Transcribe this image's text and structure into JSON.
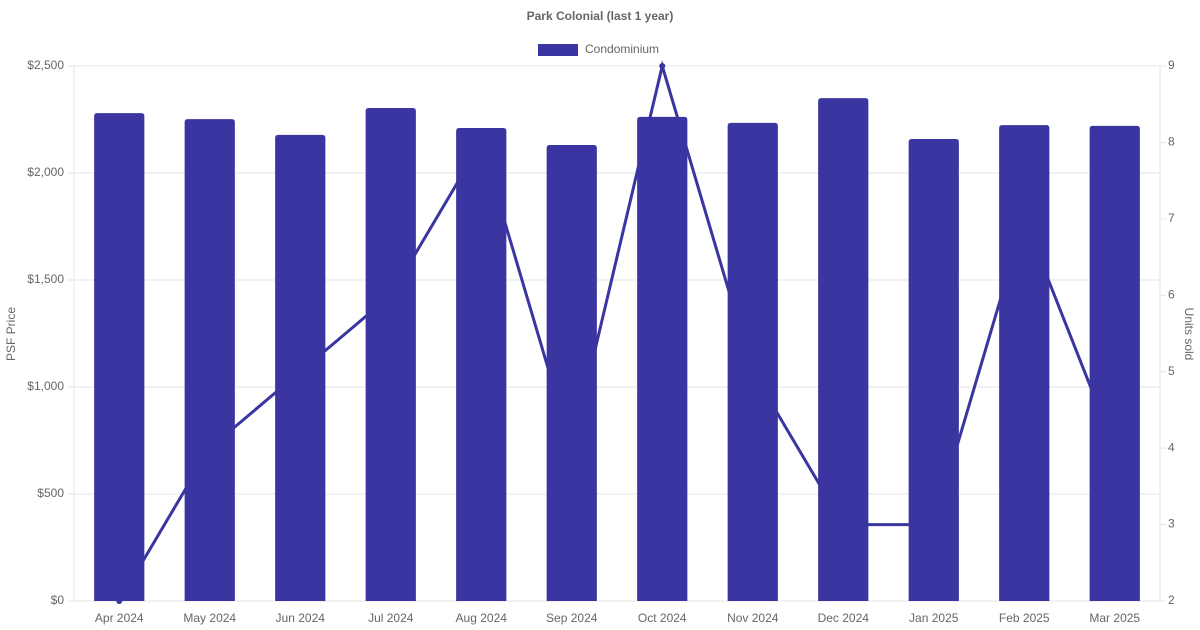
{
  "chart_data": {
    "type": "bar",
    "title": "Park Colonial (last 1 year)",
    "categories": [
      "Apr 2024",
      "May 2024",
      "Jun 2024",
      "Jul 2024",
      "Aug 2024",
      "Sep 2024",
      "Oct 2024",
      "Nov 2024",
      "Dec 2024",
      "Jan 2025",
      "Feb 2025",
      "Mar 2025"
    ],
    "series": [
      {
        "name": "Condominium",
        "color": "#3a35a0",
        "type": "bar",
        "values": [
          2280,
          2252,
          2178,
          2304,
          2210,
          2131,
          2262,
          2234,
          2350,
          2159,
          2224,
          2220
        ]
      },
      {
        "color": "#3a35a0",
        "type": "line",
        "axis": "y2",
        "values": [
          2,
          4,
          5,
          6,
          8,
          4,
          9,
          5,
          3,
          3,
          7,
          4
        ]
      }
    ],
    "ylabel": "PSF Price",
    "y2label": "Units sold",
    "ylim": [
      0,
      2500
    ],
    "yticks": [
      {
        "value": 0,
        "label": "$0"
      },
      {
        "value": 500,
        "label": "$500"
      },
      {
        "value": 1000,
        "label": "$1,000"
      },
      {
        "value": 1500,
        "label": "$1,500"
      },
      {
        "value": 2000,
        "label": "$2,000"
      },
      {
        "value": 2500,
        "label": "$2,500"
      }
    ],
    "y2lim": [
      2,
      9
    ],
    "y2ticks": [
      2,
      3,
      4,
      5,
      6,
      7,
      8,
      9
    ],
    "grid": true,
    "legend": "top"
  }
}
